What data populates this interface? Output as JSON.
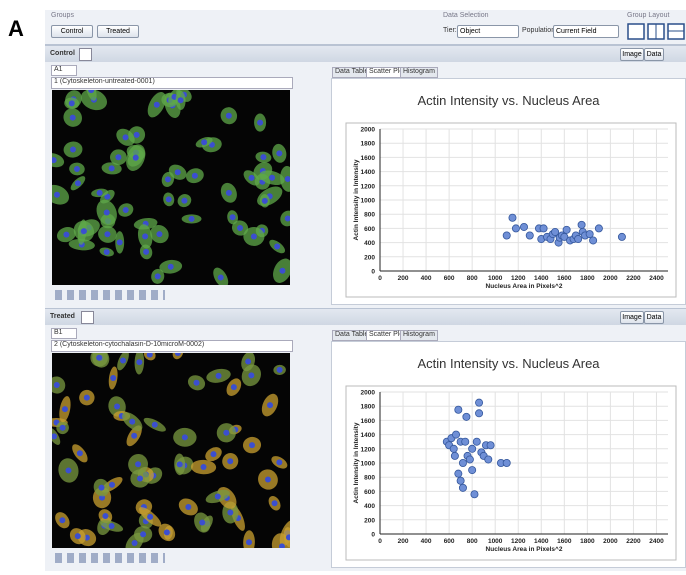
{
  "panel_label": "A",
  "toolbar": {
    "groups_label": "Groups",
    "group_buttons": [
      "Control",
      "Treated"
    ],
    "data_selection_label": "Data Selection",
    "tier_label": "Tier:",
    "tier_value": "Object",
    "population_label": "Population:",
    "population_value": "Current Field",
    "group_layout_label": "Group Layout"
  },
  "panels": [
    {
      "name": "Control",
      "well": "A1",
      "image_title": "1 (Cytoskeleton-untreated-0001)",
      "tabs": [
        "Data Table",
        "Scatter Plot",
        "Histogram"
      ],
      "buttons": [
        "Image",
        "Data"
      ]
    },
    {
      "name": "Treated",
      "well": "B1",
      "image_title": "2 (Cytoskeleton-cytochalasin-D-10microM-0002)",
      "tabs": [
        "Data Table",
        "Scatter Plot",
        "Histogram"
      ],
      "buttons": [
        "Image",
        "Data"
      ]
    }
  ],
  "chart_data": [
    {
      "type": "scatter",
      "title": "Actin Intensity vs. Nucleus Area",
      "x_label": "Nucleus Area in Pixels^2",
      "y_label": "Actin Intensity in Intensity",
      "color": "#6f8fd6",
      "grid": true,
      "x": [
        1100,
        1150,
        1180,
        1250,
        1300,
        1380,
        1400,
        1420,
        1450,
        1480,
        1500,
        1520,
        1550,
        1560,
        1580,
        1600,
        1620,
        1650,
        1680,
        1700,
        1720,
        1750,
        1760,
        1780,
        1820,
        1850,
        1900,
        2100
      ],
      "values": [
        500,
        750,
        600,
        620,
        500,
        600,
        450,
        600,
        480,
        450,
        520,
        550,
        400,
        470,
        500,
        480,
        580,
        430,
        450,
        500,
        450,
        650,
        550,
        500,
        520,
        430,
        600,
        480
      ],
      "xlim": [
        0,
        2500
      ],
      "ylim": [
        0,
        2000
      ],
      "xticks": [
        0,
        200,
        400,
        600,
        800,
        1000,
        1200,
        1400,
        1600,
        1800,
        2000,
        2200,
        2400
      ],
      "yticks": [
        0,
        200,
        400,
        600,
        800,
        1000,
        1200,
        1400,
        1600,
        1800,
        2000
      ]
    },
    {
      "type": "scatter",
      "title": "Actin Intensity vs. Nucleus Area",
      "x_label": "Nucleus Area in Pixels^2",
      "y_label": "Actin Intensity in Intensity",
      "color": "#6f8fd6",
      "grid": true,
      "x": [
        580,
        600,
        620,
        640,
        650,
        660,
        680,
        680,
        700,
        700,
        720,
        720,
        740,
        750,
        760,
        780,
        800,
        800,
        820,
        840,
        860,
        860,
        880,
        900,
        920,
        940,
        960,
        1050,
        1100
      ],
      "values": [
        1300,
        1250,
        1350,
        1200,
        1100,
        1400,
        1750,
        850,
        1300,
        750,
        650,
        1000,
        1300,
        1650,
        1100,
        1050,
        900,
        1200,
        560,
        1300,
        1700,
        1850,
        1150,
        1100,
        1250,
        1050,
        1250,
        1000,
        1000
      ],
      "xlim": [
        0,
        2500
      ],
      "ylim": [
        0,
        2000
      ],
      "xticks": [
        0,
        200,
        400,
        600,
        800,
        1000,
        1200,
        1400,
        1600,
        1800,
        2000,
        2200,
        2400
      ],
      "yticks": [
        0,
        200,
        400,
        600,
        800,
        1000,
        1200,
        1400,
        1600,
        1800,
        2000
      ]
    }
  ]
}
